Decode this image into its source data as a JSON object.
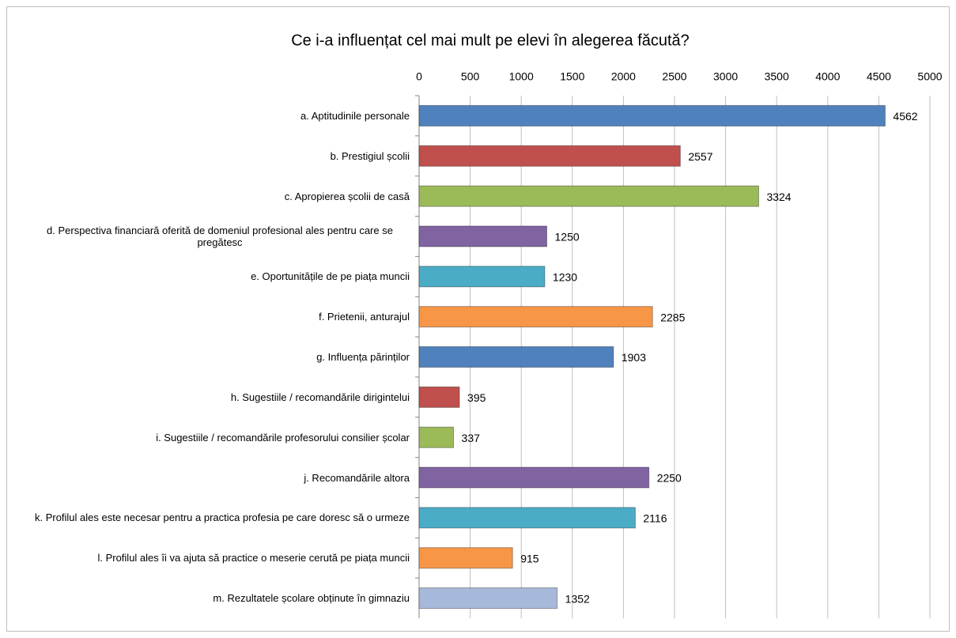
{
  "chart_data": {
    "type": "bar",
    "orientation": "horizontal",
    "title": "Ce i-a influențat cel mai mult pe elevi în alegerea făcută?",
    "categories": [
      "a. Aptitudinile personale",
      "b. Prestigiul școlii",
      "c. Apropierea școlii de casă",
      "d. Perspectiva financiară oferită de domeniul profesional ales pentru care se pregătesc",
      "e. Oportunitățile de pe piața muncii",
      "f. Prietenii, anturajul",
      "g. Influența părinților",
      "h. Sugestiile / recomandările dirigintelui",
      "i. Sugestiile / recomandările profesorului consilier școlar",
      "j. Recomandările altora",
      "k. Profilul ales este necesar pentru a practica profesia pe care doresc să o urmeze",
      "l. Profilul ales îi va ajuta să practice o meserie cerută pe piața muncii",
      "m. Rezultatele școlare obținute în gimnaziu"
    ],
    "values": [
      4562,
      2557,
      3324,
      1250,
      1230,
      2285,
      1903,
      395,
      337,
      2250,
      2116,
      915,
      1352
    ],
    "colors": [
      "#4f81bd",
      "#c0504d",
      "#9bbb59",
      "#8064a2",
      "#4bacc6",
      "#f79646",
      "#4f81bd",
      "#c0504d",
      "#9bbb59",
      "#8064a2",
      "#4bacc6",
      "#f79646",
      "#a7b9da"
    ],
    "xlim": [
      0,
      5000
    ],
    "xticks": [
      0,
      500,
      1000,
      1500,
      2000,
      2500,
      3000,
      3500,
      4000,
      4500,
      5000
    ],
    "grid": true
  }
}
